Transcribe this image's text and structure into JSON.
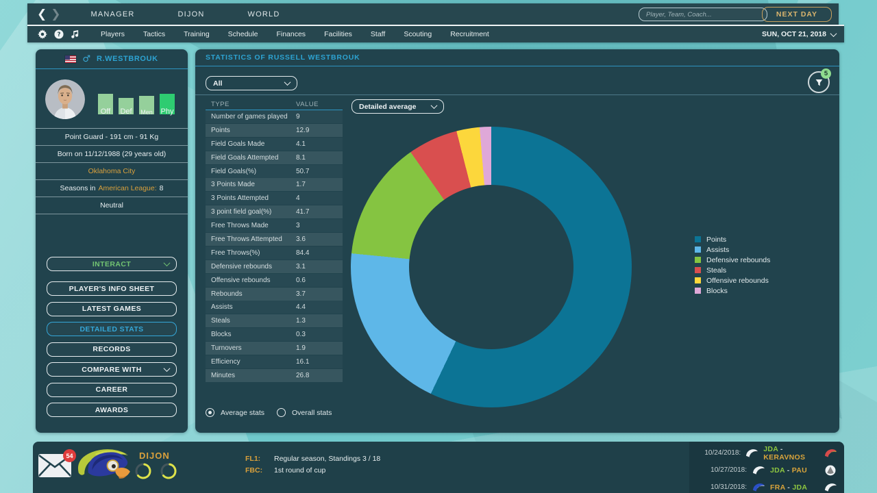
{
  "top_bar": {
    "tabs": [
      {
        "label": "MANAGER"
      },
      {
        "label": "DIJON"
      },
      {
        "label": "WORLD"
      }
    ],
    "search_placeholder": "Player, Team, Coach...",
    "next_day_label": "NEXT DAY"
  },
  "nav_bar": {
    "items": [
      "Players",
      "Tactics",
      "Training",
      "Schedule",
      "Finances",
      "Facilities",
      "Staff",
      "Scouting",
      "Recruitment"
    ],
    "date": "SUN, OCT 21, 2018"
  },
  "player_card": {
    "name": "R.WESTBROUK",
    "attributes": [
      {
        "label": "Off",
        "value": 0.95,
        "color": "#95d09b"
      },
      {
        "label": "Def",
        "value": 0.76,
        "color": "#95d09b"
      },
      {
        "label": "Men",
        "value": 0.85,
        "color": "#95d09b"
      },
      {
        "label": "Phy",
        "value": 0.93,
        "color": "#2ecc71"
      }
    ],
    "position_row": "Point Guard - 191 cm - 91 Kg",
    "born_row": "Born on 11/12/1988 (29 years old)",
    "team": "Oklahoma City",
    "seasons_prefix": "Seasons in",
    "seasons_league": "American League:",
    "seasons_value": "8",
    "morale": "Neutral",
    "buttons": [
      {
        "label": "INTERACT",
        "style": "green",
        "chevron": true
      },
      {
        "label": "PLAYER'S INFO SHEET"
      },
      {
        "label": "LATEST GAMES"
      },
      {
        "label": "DETAILED STATS",
        "style": "active"
      },
      {
        "label": "RECORDS"
      },
      {
        "label": "COMPARE WITH",
        "chevron": true
      },
      {
        "label": "CAREER"
      },
      {
        "label": "AWARDS"
      }
    ]
  },
  "stats_panel": {
    "title": "STATISTICS OF RUSSELL WESTBROUK",
    "filter_badge": "5",
    "scope_dropdown_value": "All",
    "view_dropdown_value": "Detailed average",
    "table": {
      "headers": [
        "TYPE",
        "VALUE"
      ],
      "rows": [
        [
          "Number of games played",
          "9"
        ],
        [
          "Points",
          "12.9"
        ],
        [
          "Field Goals Made",
          "4.1"
        ],
        [
          "Field Goals Attempted",
          "8.1"
        ],
        [
          "Field Goals(%)",
          "50.7"
        ],
        [
          "3 Points Made",
          "1.7"
        ],
        [
          "3 Points Attempted",
          "4"
        ],
        [
          "3 point field goal(%)",
          "41.7"
        ],
        [
          "Free Throws Made",
          "3"
        ],
        [
          "Free Throws Attempted",
          "3.6"
        ],
        [
          "Free Throws(%)",
          "84.4"
        ],
        [
          "Defensive rebounds",
          "3.1"
        ],
        [
          "Offensive rebounds",
          "0.6"
        ],
        [
          "Rebounds",
          "3.7"
        ],
        [
          "Assists",
          "4.4"
        ],
        [
          "Steals",
          "1.3"
        ],
        [
          "Blocks",
          "0.3"
        ],
        [
          "Turnovers",
          "1.9"
        ],
        [
          "Efficiency",
          "16.1"
        ],
        [
          "Minutes",
          "26.8"
        ]
      ]
    },
    "radios": [
      {
        "label": "Average stats",
        "selected": true
      },
      {
        "label": "Overall stats",
        "selected": false
      }
    ]
  },
  "chart_data": {
    "type": "pie",
    "donut": true,
    "labels": [
      "Points",
      "Assists",
      "Defensive rebounds",
      "Steals",
      "Offensive rebounds",
      "Blocks"
    ],
    "values": [
      12.9,
      4.4,
      3.1,
      1.3,
      0.6,
      0.3
    ],
    "colors": [
      "#0c7495",
      "#5eb7e8",
      "#85c441",
      "#d94f4f",
      "#fcd73c",
      "#dfa8d8"
    ],
    "title": "",
    "legend_position": "right",
    "start_angle_deg": 0,
    "direction": "clockwise"
  },
  "footer": {
    "mail_badge": "54",
    "team_name": "DIJON",
    "competitions": [
      {
        "code": "FL1:",
        "text": "Regular season, Standings 3 / 18"
      },
      {
        "code": "FBC:",
        "text": "1st round of cup"
      }
    ],
    "schedule": [
      {
        "date": "10/24/2018:",
        "home": {
          "label": "JDA",
          "color": "#8dc63f",
          "logo": {
            "kind": "bird",
            "c1": "#eef2f4",
            "c2": "#3a3f44"
          }
        },
        "away": {
          "label": "KERAVNOS",
          "color": "#d9a43b",
          "logo": {
            "kind": "bird",
            "c1": "#d84b4b",
            "c2": "#e8c23a"
          }
        }
      },
      {
        "date": "10/27/2018:",
        "home": {
          "label": "JDA",
          "color": "#8dc63f",
          "logo": {
            "kind": "bird",
            "c1": "#eef2f4",
            "c2": "#3a3f44"
          }
        },
        "away": {
          "label": "PAU",
          "color": "#d9a43b",
          "logo": {
            "kind": "disc",
            "c1": "#eef2f4",
            "c2": "#2a2a2a"
          }
        }
      },
      {
        "date": "10/31/2018:",
        "home": {
          "label": "FRA",
          "color": "#d9a43b",
          "logo": {
            "kind": "bird",
            "c1": "#2a50c8",
            "c2": "#e8eef0"
          }
        },
        "away": {
          "label": "JDA",
          "color": "#8dc63f",
          "logo": {
            "kind": "bird",
            "c1": "#eef2f4",
            "c2": "#3a3f44"
          }
        }
      }
    ]
  },
  "colors": {
    "accent_cyan": "#2da3d2",
    "accent_gold": "#d9a03c",
    "accent_green": "#8dc63f",
    "panel_bg": "#21434d"
  }
}
